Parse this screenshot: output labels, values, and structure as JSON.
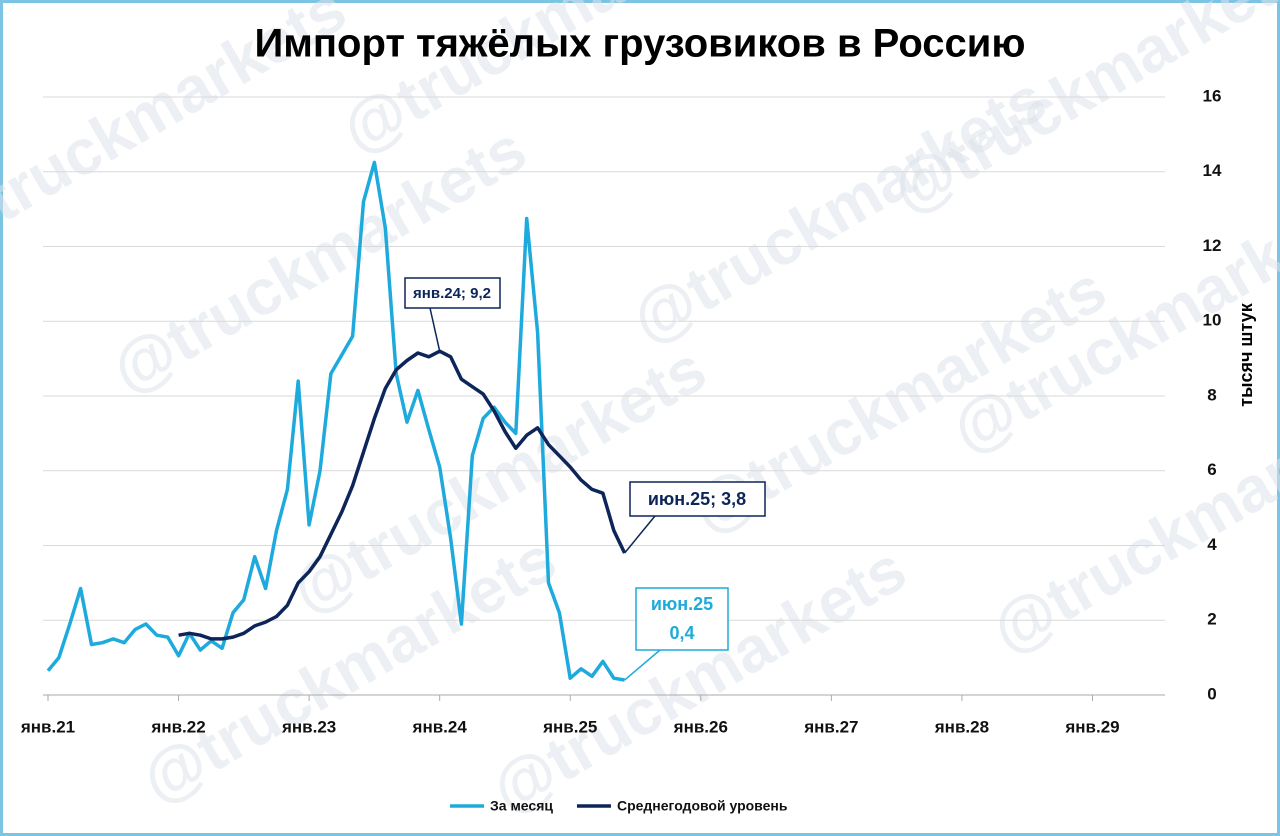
{
  "chart_data": {
    "type": "line",
    "title": "Импорт тяжёлых грузовиков в Россию",
    "y_label": "тысяч штук",
    "watermark": "@truckmarkets",
    "categories": [
      "янв.21",
      null,
      null,
      null,
      null,
      null,
      null,
      null,
      null,
      null,
      null,
      null,
      "янв.22",
      null,
      null,
      null,
      null,
      null,
      null,
      null,
      null,
      null,
      null,
      null,
      "янв.23",
      null,
      null,
      null,
      null,
      null,
      null,
      null,
      null,
      null,
      null,
      null,
      "янв.24",
      null,
      null,
      null,
      null,
      null,
      null,
      null,
      null,
      null,
      null,
      null,
      "янв.25",
      null,
      null,
      null,
      null,
      null,
      null,
      null,
      null,
      null,
      null,
      null,
      "янв.26",
      null,
      null,
      null,
      null,
      null,
      null,
      null,
      null,
      null,
      null,
      null,
      "янв.27",
      null,
      null,
      null,
      null,
      null,
      null,
      null,
      null,
      null,
      null,
      null,
      "янв.28",
      null,
      null,
      null,
      null,
      null,
      null,
      null,
      null,
      null,
      null,
      null,
      "янв.29",
      null,
      null,
      null,
      null,
      null,
      null
    ],
    "series": [
      {
        "name": "За месяц",
        "color": "#1eaadc",
        "values": [
          0.65,
          1.0,
          1.9,
          2.85,
          1.35,
          1.4,
          1.5,
          1.4,
          1.75,
          1.9,
          1.6,
          1.55,
          1.05,
          1.65,
          1.2,
          1.45,
          1.25,
          2.2,
          2.55,
          3.7,
          2.85,
          4.4,
          5.5,
          8.4,
          4.55,
          6.0,
          8.6,
          9.1,
          9.6,
          13.2,
          14.25,
          12.5,
          8.6,
          7.3,
          8.15,
          7.1,
          6.1,
          4.2,
          1.9,
          6.4,
          7.4,
          7.7,
          7.3,
          7.0,
          12.75,
          9.7,
          3.0,
          2.2,
          0.45,
          0.7,
          0.5,
          0.9,
          0.45,
          0.4,
          null,
          null,
          null,
          null,
          null,
          null,
          null,
          null,
          null,
          null,
          null,
          null,
          null,
          null,
          null,
          null,
          null,
          null,
          null,
          null,
          null,
          null,
          null,
          null,
          null,
          null,
          null,
          null,
          null,
          null,
          null,
          null,
          null,
          null,
          null,
          null,
          null,
          null,
          null,
          null,
          null,
          null,
          null,
          null,
          null,
          null,
          null,
          null,
          null
        ]
      },
      {
        "name": "Среднегодовой уровень",
        "color": "#0d2559",
        "values": [
          null,
          null,
          null,
          null,
          null,
          null,
          null,
          null,
          null,
          null,
          null,
          null,
          1.6,
          1.65,
          1.6,
          1.5,
          1.5,
          1.55,
          1.65,
          1.85,
          1.95,
          2.1,
          2.4,
          3.0,
          3.3,
          3.7,
          4.3,
          4.9,
          5.6,
          6.5,
          7.4,
          8.2,
          8.7,
          8.95,
          9.15,
          9.05,
          9.2,
          9.05,
          8.45,
          8.25,
          8.05,
          7.6,
          7.05,
          6.6,
          6.95,
          7.15,
          6.7,
          6.4,
          6.1,
          5.75,
          5.5,
          5.4,
          4.4,
          3.8,
          null,
          null,
          null,
          null,
          null,
          null,
          null,
          null,
          null,
          null,
          null,
          null,
          null,
          null,
          null,
          null,
          null,
          null,
          null,
          null,
          null,
          null,
          null,
          null,
          null,
          null,
          null,
          null,
          null,
          null,
          null,
          null,
          null,
          null,
          null,
          null,
          null,
          null,
          null,
          null,
          null,
          null,
          null,
          null,
          null,
          null,
          null,
          null,
          null
        ]
      }
    ],
    "annotations": [
      "янв.24; 9,2",
      "июн.25; 3,8",
      "июн.25",
      "0,4"
    ],
    "ylim": [
      0,
      16
    ],
    "yticks": [
      0,
      2,
      4,
      6,
      8,
      10,
      12,
      14,
      16
    ],
    "grid": true,
    "legend": "bottom"
  }
}
